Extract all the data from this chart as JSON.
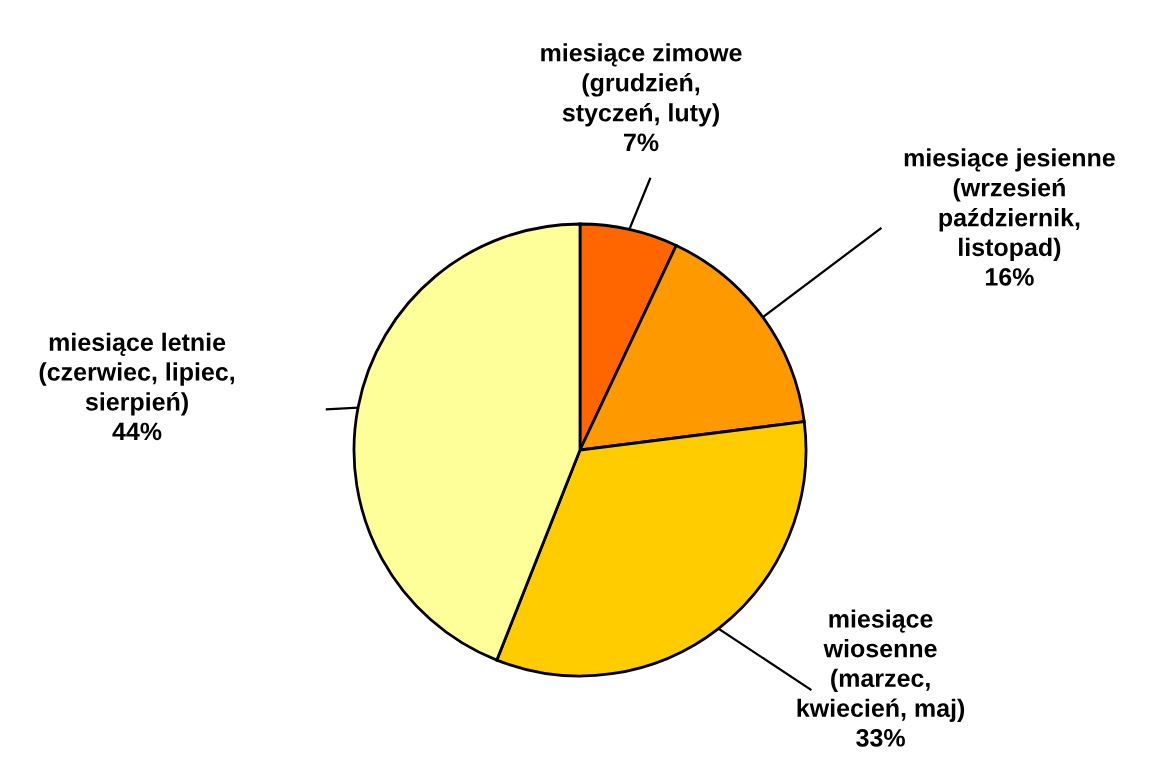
{
  "chart_data": {
    "type": "pie",
    "categories": [
      "miesiące zimowe\n(grudzień,\nstyczeń, luty)",
      "miesiące jesienne\n(wrzesień\npaździernik,\nlistopad)",
      "miesiące\nwiosenne\n(marzec,\nkwiecień, maj)",
      "miesiące letnie\n(czerwiec, lipiec,\nsierpień)"
    ],
    "values": [
      7,
      16,
      33,
      44
    ],
    "value_labels": [
      "7%",
      "16%",
      "33%",
      "44%"
    ],
    "colors": [
      "#ff6600",
      "#ff9900",
      "#ffcc00",
      "#ffff99"
    ],
    "legend": false
  }
}
